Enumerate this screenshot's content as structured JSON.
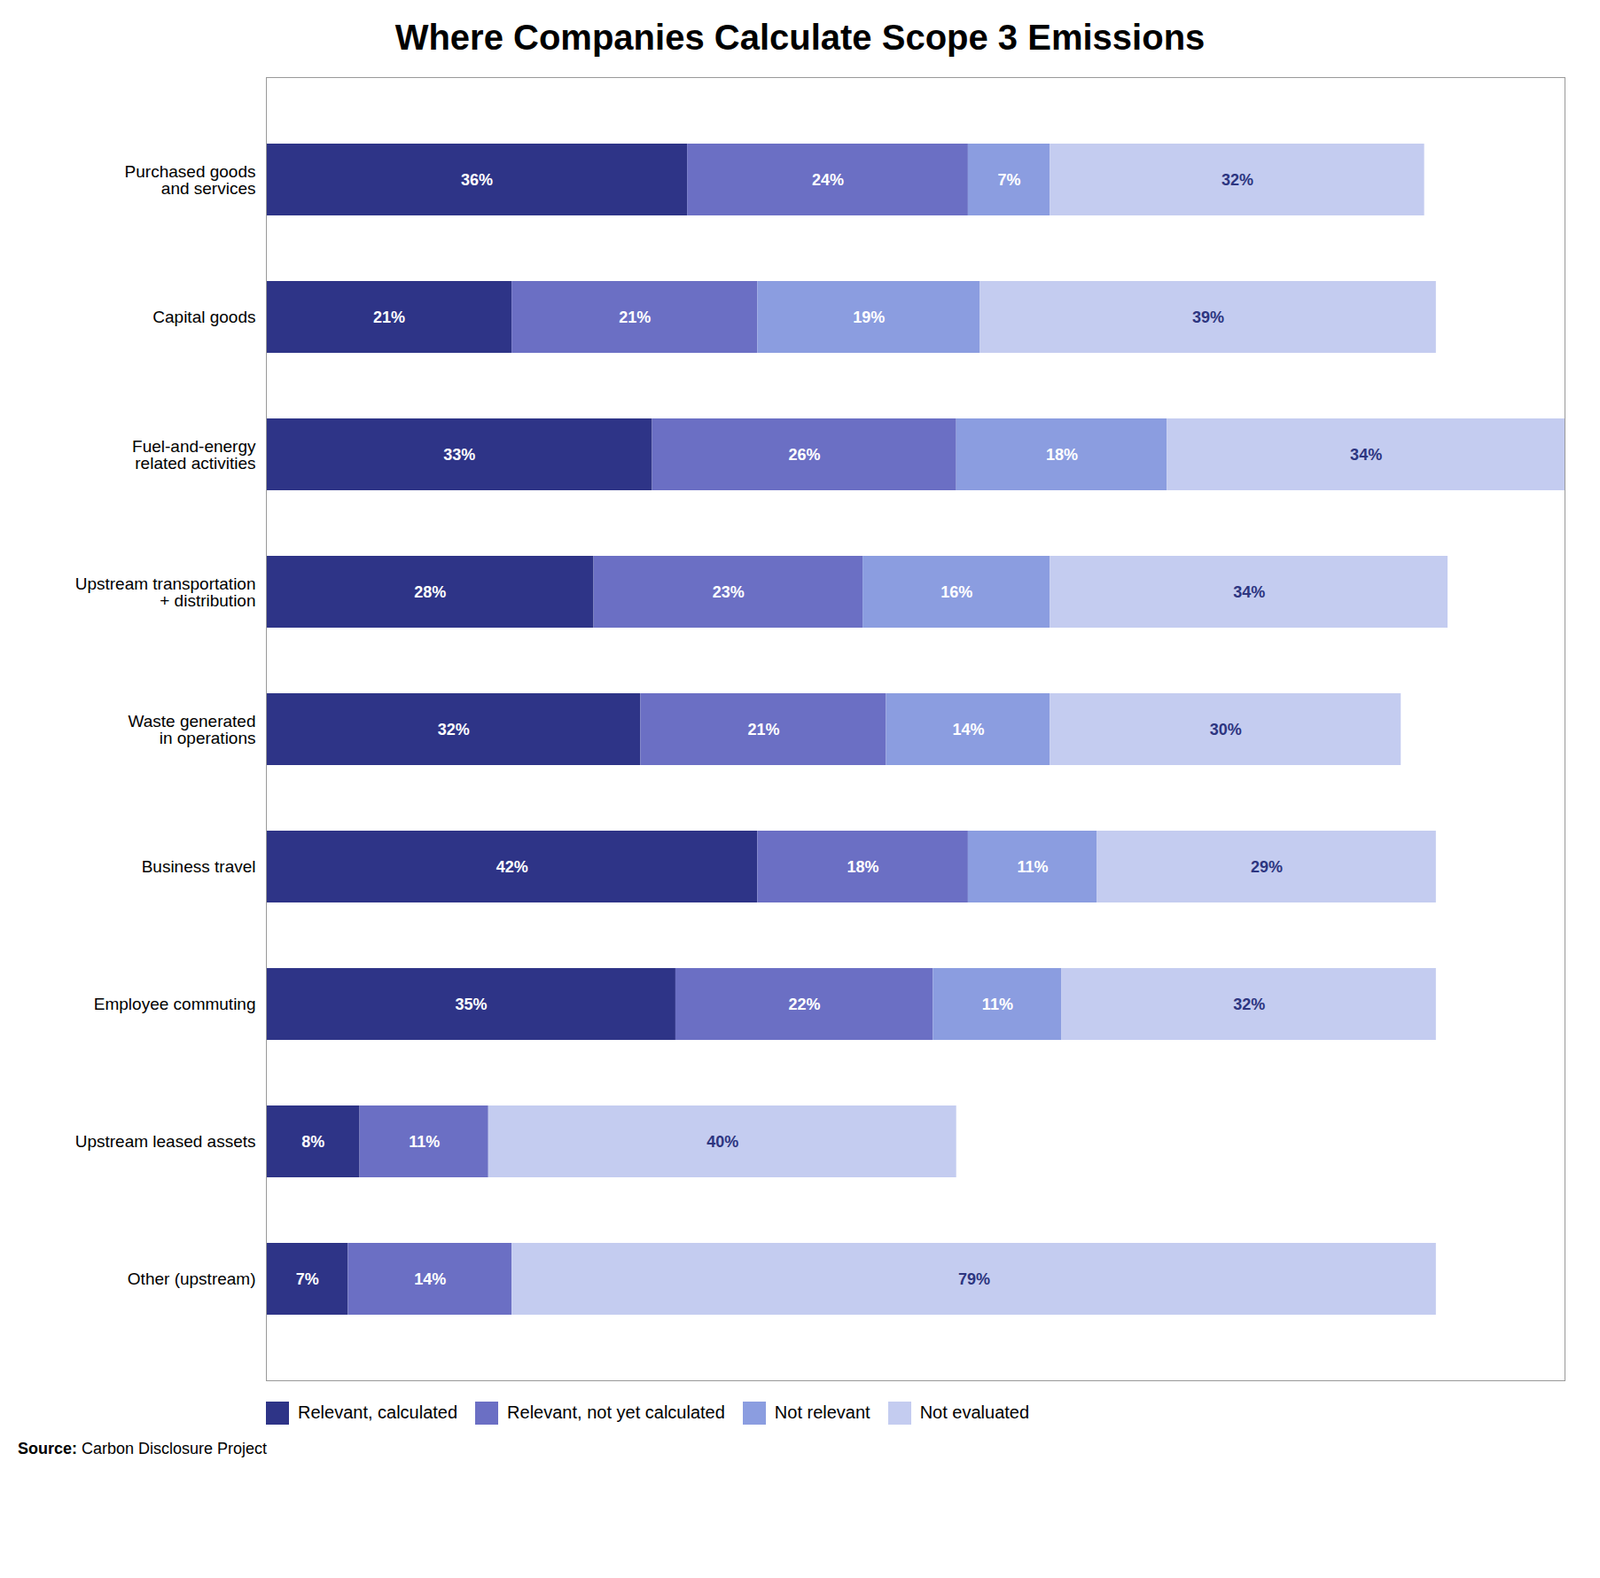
{
  "chart_data": {
    "type": "bar",
    "title": "Where Companies Calculate Scope 3 Emissions",
    "orientation": "horizontal",
    "stacked": true,
    "data_labels": true,
    "grid": false,
    "legend": "bottom",
    "tick_labels": "y",
    "categories": [
      "Purchased goods\nand services",
      "Capital goods",
      "Fuel-and-energy\nrelated activities",
      "Upstream transportation\n+ distribution",
      "Waste generated\nin operations",
      "Business travel",
      "Employee commuting",
      "Upstream leased assets",
      "Other (upstream)"
    ],
    "xlim": [
      0,
      111
    ],
    "series": [
      {
        "name": "Relevant, calculated",
        "color": "#2e3487",
        "values": [
          36,
          21,
          33,
          28,
          32,
          42,
          35,
          8,
          7
        ],
        "value_labels": [
          "36%",
          "21%",
          "33%",
          "28%",
          "32%",
          "42%",
          "35%",
          "8%",
          "7%"
        ]
      },
      {
        "name": "Relevant, not yet calculated",
        "color": "#6b6fc4",
        "values": [
          24,
          21,
          26,
          23,
          21,
          18,
          22,
          11,
          14
        ],
        "value_labels": [
          "24%",
          "21%",
          "26%",
          "23%",
          "21%",
          "18%",
          "22%",
          "11%",
          "14%"
        ]
      },
      {
        "name": "Not relevant",
        "color": "#8b9de0",
        "values": [
          7,
          19,
          18,
          16,
          14,
          11,
          11,
          0,
          0
        ],
        "value_labels": [
          "7%",
          "19%",
          "18%",
          "16%",
          "14%",
          "11%",
          "11%",
          null,
          null
        ]
      },
      {
        "name": "Not evaluated",
        "color": "#c4ccf0",
        "values": [
          32,
          39,
          34,
          34,
          30,
          29,
          32,
          40,
          79
        ],
        "value_labels": [
          "32%",
          "39%",
          "34%",
          "34%",
          "30%",
          "29%",
          "32%",
          "40%",
          "79%"
        ]
      }
    ],
    "source_label": "Source:",
    "source": "Carbon Disclosure Project"
  }
}
